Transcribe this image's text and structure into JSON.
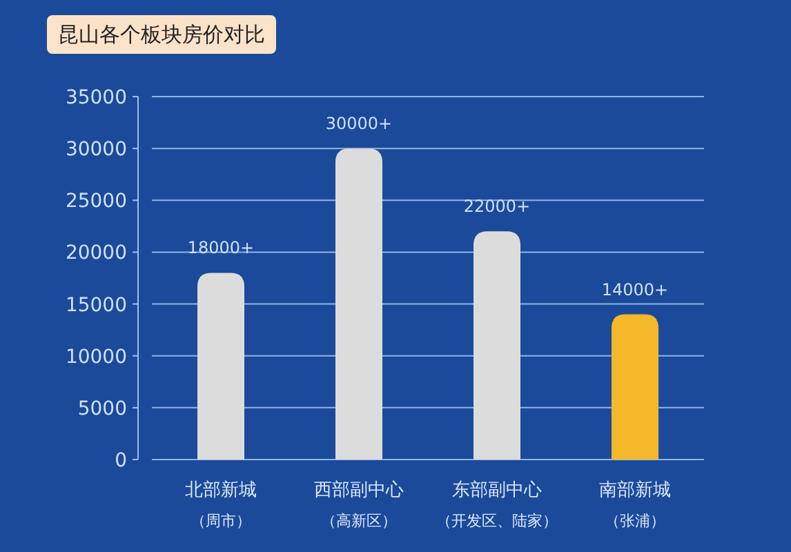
{
  "chart_data": {
    "type": "bar",
    "title": "昆山各个板块房价对比",
    "categories": [
      "北部新城（周市）",
      "西部副中心（高新区）",
      "东部副中心（开发区、陆家）",
      "南部新城（张浦）"
    ],
    "values": [
      18000,
      30000,
      22000,
      14000
    ],
    "colors": [
      "#dcdcdc",
      "#dcdcdc",
      "#dcdcdc",
      "#f5b82a"
    ],
    "value_labels": [
      "18000+",
      "30000+",
      "22000+",
      "14000+"
    ],
    "ylim": [
      0,
      35000
    ],
    "yticks": [
      0,
      5000,
      10000,
      15000,
      20000,
      25000,
      30000,
      35000
    ],
    "grid": "y"
  }
}
